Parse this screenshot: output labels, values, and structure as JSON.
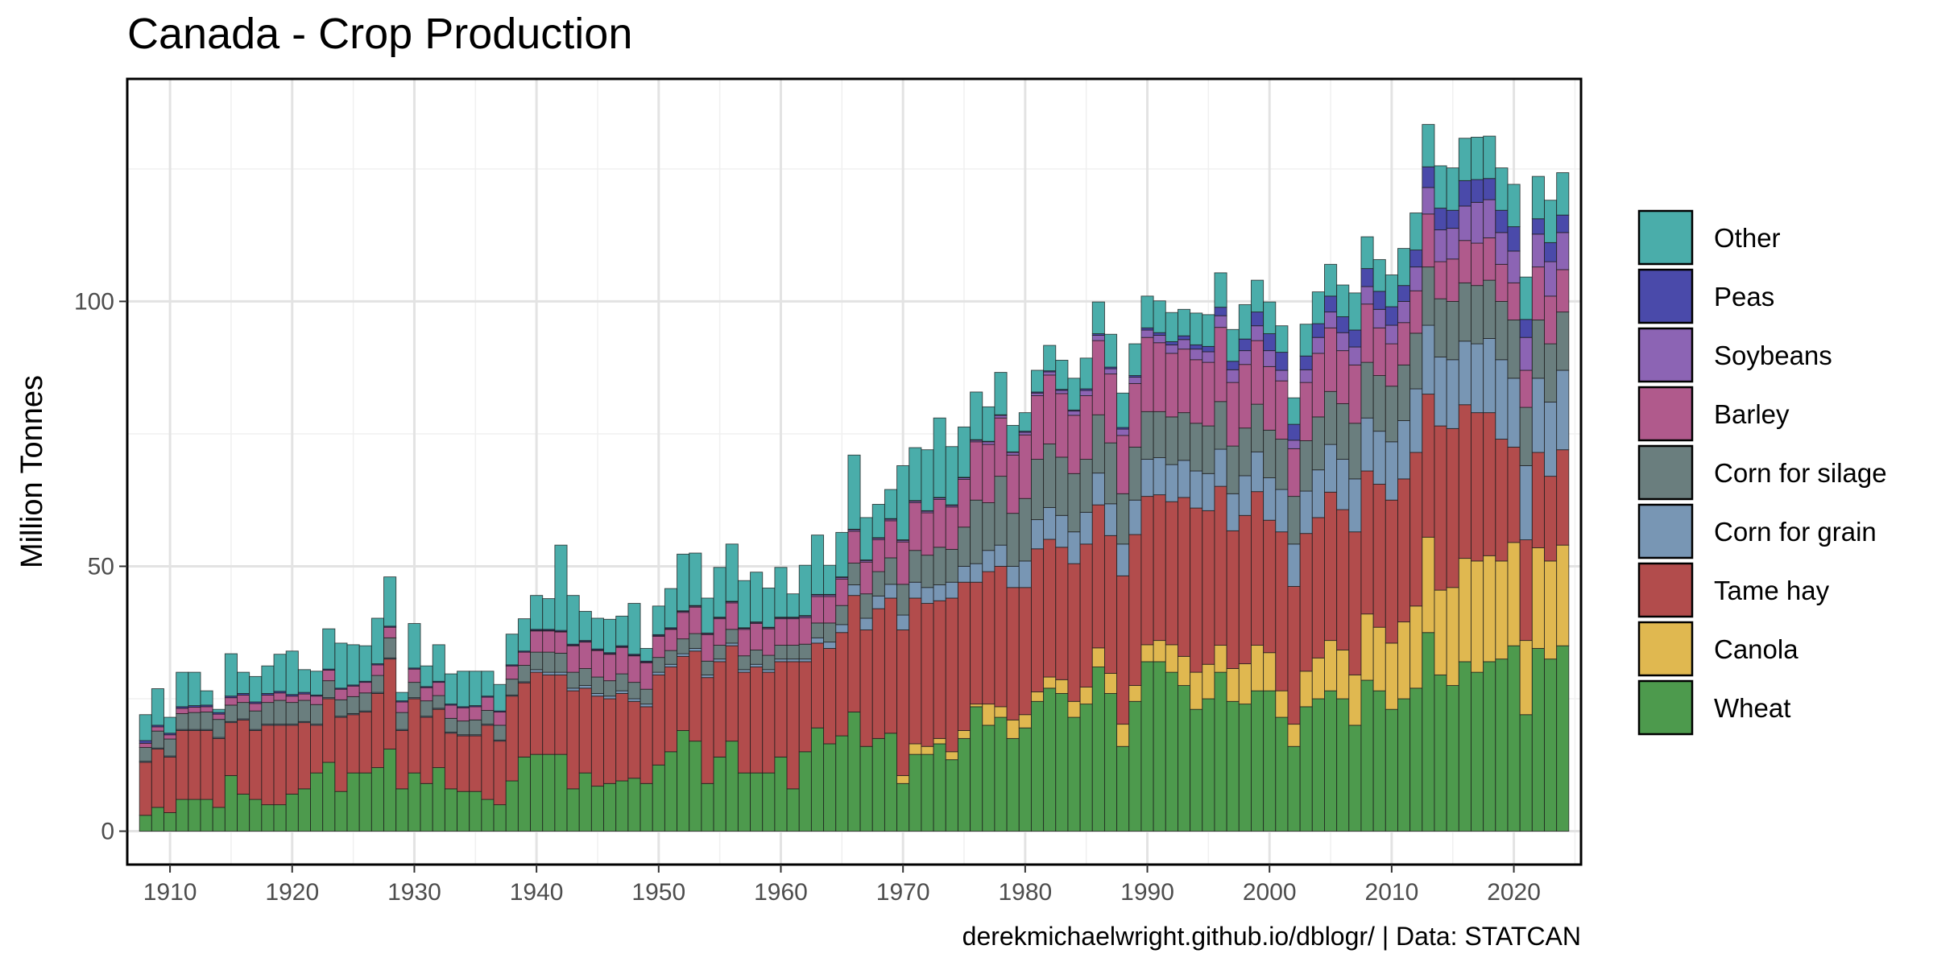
{
  "chart_data": {
    "type": "bar",
    "stacked": true,
    "title": "Canada - Crop Production",
    "ylabel": "Million Tonnes",
    "xlabel": "",
    "caption": "derekmichaelwright.github.io/dblogr/ | Data: STATCAN",
    "xlim": [
      1906.5,
      2025.5
    ],
    "ylim": [
      -6.3,
      142
    ],
    "x_ticks": [
      1910,
      1920,
      1930,
      1940,
      1950,
      1960,
      1970,
      1980,
      1990,
      2000,
      2010,
      2020
    ],
    "y_ticks": [
      0,
      50,
      100
    ],
    "grid": true,
    "legend_position": "right",
    "legend_order": [
      "Other",
      "Peas",
      "Soybeans",
      "Barley",
      "Corn for silage",
      "Corn for grain",
      "Tame hay",
      "Canola",
      "Wheat"
    ],
    "years": [
      1908,
      1909,
      1910,
      1911,
      1912,
      1913,
      1914,
      1915,
      1916,
      1917,
      1918,
      1919,
      1920,
      1921,
      1922,
      1923,
      1924,
      1925,
      1926,
      1927,
      1928,
      1929,
      1930,
      1931,
      1932,
      1933,
      1934,
      1935,
      1936,
      1937,
      1938,
      1939,
      1940,
      1941,
      1942,
      1943,
      1944,
      1945,
      1946,
      1947,
      1948,
      1949,
      1950,
      1951,
      1952,
      1953,
      1954,
      1955,
      1956,
      1957,
      1958,
      1959,
      1960,
      1961,
      1962,
      1963,
      1964,
      1965,
      1966,
      1967,
      1968,
      1969,
      1970,
      1971,
      1972,
      1973,
      1974,
      1975,
      1976,
      1977,
      1978,
      1979,
      1980,
      1981,
      1982,
      1983,
      1984,
      1985,
      1986,
      1987,
      1988,
      1989,
      1990,
      1991,
      1992,
      1993,
      1994,
      1995,
      1996,
      1997,
      1998,
      1999,
      2000,
      2001,
      2002,
      2003,
      2004,
      2005,
      2006,
      2007,
      2008,
      2009,
      2010,
      2011,
      2012,
      2013,
      2014,
      2015,
      2016,
      2017,
      2018,
      2019,
      2020,
      2021,
      2022,
      2023,
      2024
    ],
    "series": [
      {
        "name": "Wheat",
        "color": "#4d9a4d",
        "values": [
          3,
          4.5,
          3.5,
          6,
          6,
          6,
          4.5,
          10.5,
          7,
          6,
          5,
          5,
          7,
          8,
          11,
          13,
          7.5,
          11,
          11,
          12,
          15.5,
          8,
          11,
          9,
          12,
          8,
          7.5,
          7.5,
          6,
          5,
          9.5,
          14,
          14.5,
          14.5,
          14.5,
          8,
          11,
          8.5,
          9,
          9.5,
          10,
          9,
          12.5,
          15,
          19,
          17,
          9,
          14,
          17,
          11,
          11,
          11,
          14,
          8,
          15,
          19.5,
          16.5,
          18,
          22.5,
          16,
          17.5,
          18.5,
          9,
          14.5,
          14.5,
          16.5,
          13.5,
          17.5,
          23.5,
          20,
          21.5,
          17.5,
          19.5,
          24.5,
          27,
          26,
          21.5,
          24,
          31,
          26,
          16,
          24.5,
          32,
          32,
          30,
          27.5,
          23,
          25,
          30,
          24.5,
          24,
          26.5,
          26.5,
          21.5,
          16,
          23.5,
          25,
          26.5,
          25,
          20,
          28.5,
          26.5,
          23,
          25,
          27,
          37.5,
          29.5,
          27.5,
          32,
          30,
          32,
          32.5,
          35,
          22,
          34.5,
          32.5,
          35
        ]
      },
      {
        "name": "Canola",
        "color": "#e0b850",
        "values": [
          0,
          0,
          0,
          0,
          0,
          0,
          0,
          0,
          0,
          0,
          0,
          0,
          0,
          0,
          0,
          0,
          0,
          0,
          0,
          0,
          0,
          0,
          0,
          0,
          0,
          0,
          0,
          0,
          0,
          0,
          0,
          0,
          0,
          0,
          0,
          0,
          0,
          0,
          0,
          0,
          0,
          0,
          0,
          0,
          0,
          0,
          0,
          0,
          0,
          0,
          0,
          0,
          0,
          0,
          0,
          0,
          0,
          0,
          0,
          0,
          0,
          0,
          1.5,
          2,
          1.5,
          1,
          1.5,
          1.5,
          0.5,
          4,
          2,
          3.5,
          2.5,
          1.8,
          2.1,
          2.6,
          3,
          3.2,
          3.6,
          3.8,
          4.2,
          3,
          3.2,
          4,
          5.2,
          5.5,
          7,
          6.5,
          5.1,
          6.2,
          7.6,
          8.6,
          7.2,
          5,
          4.2,
          6.7,
          7.7,
          9.5,
          9.2,
          9.5,
          12.5,
          12,
          12.5,
          14.5,
          15.5,
          18,
          16,
          18.5,
          19.5,
          21,
          20,
          18.5,
          19.5,
          14,
          19,
          18.5,
          19
        ]
      },
      {
        "name": "Tame hay",
        "color": "#b24c4c",
        "values": [
          10,
          11,
          10.5,
          13,
          13,
          13,
          13,
          10,
          14,
          13,
          15,
          15,
          13,
          12.5,
          9,
          12,
          14,
          11,
          11.5,
          14,
          17,
          11,
          14,
          12.5,
          11,
          10.5,
          10.5,
          10.5,
          14,
          12,
          16,
          14,
          15.5,
          15,
          15,
          18.5,
          16,
          17,
          16,
          16.5,
          14.5,
          14.5,
          17,
          16,
          14,
          17,
          20,
          18,
          18,
          19,
          20,
          19,
          18,
          24,
          17,
          16,
          18,
          19.5,
          22,
          22,
          24.5,
          25.5,
          27.5,
          27.5,
          27,
          26,
          29,
          28,
          23,
          25,
          26.5,
          25,
          24,
          27,
          26,
          25,
          26,
          27,
          27,
          26,
          28,
          28.5,
          28,
          27.5,
          27,
          30,
          31,
          29,
          30,
          26,
          28,
          29,
          25,
          30,
          26,
          26,
          26.5,
          28,
          26.5,
          27,
          27,
          27,
          27,
          27,
          29,
          27,
          31,
          30,
          29,
          28,
          27,
          23,
          18,
          19,
          18,
          16,
          18
        ]
      },
      {
        "name": "Corn for grain",
        "color": "#7896b4",
        "values": [
          0.2,
          0.2,
          0.2,
          0.2,
          0.2,
          0.2,
          0.2,
          0.2,
          0.2,
          0.2,
          0.2,
          0.2,
          0.2,
          0.2,
          0.2,
          0.2,
          0.2,
          0.2,
          0.2,
          0.2,
          0.2,
          0.2,
          0.2,
          0.2,
          0.2,
          0.2,
          0.2,
          0.2,
          0.2,
          0.2,
          0.2,
          0.2,
          0.5,
          0.5,
          0.5,
          0.5,
          0.5,
          0.5,
          0.5,
          0.5,
          0.5,
          0.5,
          0.5,
          0.5,
          0.5,
          0.5,
          0.5,
          0.5,
          0.5,
          0.5,
          0.5,
          0.5,
          0.5,
          0.5,
          0.5,
          1,
          1.2,
          1.5,
          2,
          2.2,
          2.4,
          2.6,
          2.8,
          3,
          3,
          3,
          3,
          3,
          3.5,
          4,
          4,
          4,
          5,
          5.5,
          6,
          6,
          6,
          6,
          6,
          6,
          6,
          6.5,
          7,
          7,
          7,
          7,
          7,
          7,
          7,
          7,
          7.5,
          7.5,
          8,
          8,
          8,
          8,
          9,
          9,
          9.5,
          10,
          10,
          10,
          11,
          11,
          12,
          13,
          13,
          13,
          12,
          13,
          14,
          15,
          13,
          14,
          14,
          14,
          15
        ]
      },
      {
        "name": "Corn for silage",
        "color": "#6a7e7e",
        "values": [
          2.6,
          3.2,
          3.2,
          3,
          3.2,
          3.3,
          3.4,
          3.1,
          3.1,
          3.5,
          4.1,
          4.5,
          4.1,
          4,
          3.7,
          3.2,
          3.1,
          3.2,
          3.4,
          3.2,
          3.8,
          3.2,
          2.9,
          2.9,
          2.4,
          2.6,
          2.6,
          2.8,
          2.6,
          2.8,
          3,
          3.1,
          3.3,
          3.8,
          3.6,
          3,
          3.2,
          3.1,
          2.9,
          3.2,
          3.1,
          2.8,
          2.8,
          2.6,
          2.8,
          2.8,
          2.6,
          2.6,
          2.6,
          2.6,
          2.7,
          2.7,
          2.6,
          2.6,
          2.8,
          2.8,
          3.6,
          3.6,
          4.1,
          4.6,
          4.6,
          5,
          5.8,
          6,
          6.1,
          7.1,
          6.2,
          7.4,
          12,
          9,
          13,
          10,
          11.8,
          11.4,
          12,
          11,
          11,
          10,
          11,
          11.5,
          9.5,
          10,
          9,
          8.7,
          9,
          9,
          9,
          9,
          9,
          9,
          9,
          9,
          9,
          9.5,
          9,
          9.5,
          10,
          10,
          10.5,
          10.5,
          10.5,
          10.5,
          10.5,
          10.5,
          10.5,
          11,
          11,
          11,
          11,
          11,
          11,
          11,
          11,
          11,
          11,
          11,
          11
        ]
      },
      {
        "name": "Barley",
        "color": "#b05a8c",
        "values": [
          0.8,
          0.8,
          0.8,
          1,
          1,
          1,
          1,
          1.4,
          1.4,
          1.4,
          1.4,
          1.4,
          1.2,
          1.2,
          1.6,
          2,
          2,
          2,
          2,
          2,
          2,
          2,
          2.5,
          2.5,
          2.5,
          2.5,
          2.5,
          2.5,
          2.5,
          2.5,
          2.5,
          2.5,
          4,
          4,
          4,
          5,
          5,
          5,
          5,
          5,
          5,
          5,
          4,
          4,
          5,
          5,
          5,
          5,
          5,
          5,
          5,
          5,
          5,
          5,
          5,
          5,
          5,
          5,
          6,
          6,
          6,
          7,
          8,
          9,
          8,
          9,
          8,
          9,
          11,
          11,
          11,
          11,
          12,
          12,
          13,
          12,
          11,
          12,
          14,
          13,
          11,
          12,
          14,
          13,
          12,
          12,
          12,
          12,
          14,
          12,
          12,
          12,
          12,
          11,
          9,
          11,
          12,
          12,
          10,
          11,
          11,
          9,
          8,
          8,
          8,
          10,
          7,
          8,
          8,
          8,
          8,
          7,
          7,
          7,
          10,
          9,
          8
        ]
      },
      {
        "name": "Soybeans",
        "color": "#8c64b4",
        "values": [
          0,
          0,
          0,
          0,
          0,
          0,
          0,
          0,
          0,
          0,
          0,
          0,
          0,
          0,
          0,
          0,
          0,
          0,
          0,
          0,
          0,
          0,
          0,
          0,
          0,
          0,
          0,
          0,
          0,
          0,
          0,
          0,
          0.1,
          0.1,
          0.1,
          0.1,
          0.1,
          0.1,
          0.1,
          0.1,
          0.1,
          0.1,
          0.1,
          0.1,
          0.2,
          0.2,
          0.2,
          0.2,
          0.2,
          0.2,
          0.2,
          0.2,
          0.2,
          0.2,
          0.3,
          0.3,
          0.3,
          0.3,
          0.3,
          0.3,
          0.3,
          0.3,
          0.3,
          0.3,
          0.3,
          0.3,
          0.3,
          0.3,
          0.3,
          0.5,
          0.5,
          0.5,
          0.5,
          0.5,
          0.6,
          0.6,
          0.8,
          1,
          1,
          1,
          1.2,
          1.2,
          1.4,
          1.4,
          1.6,
          1.8,
          2,
          2,
          2.2,
          2.4,
          2.6,
          2.8,
          3,
          2,
          1.6,
          2.4,
          3,
          3,
          3.4,
          3.4,
          3.3,
          3.5,
          3.5,
          4,
          4.5,
          5,
          6,
          5.8,
          6.5,
          7.7,
          7.2,
          6,
          6,
          6.2,
          6.2,
          6.5,
          7
        ]
      },
      {
        "name": "Peas",
        "color": "#4a4aaa",
        "values": [
          0.5,
          0.3,
          0.3,
          0.3,
          0.3,
          0.3,
          0.3,
          0.3,
          0.3,
          0.3,
          0.3,
          0.3,
          0.3,
          0.3,
          0.2,
          0.2,
          0.2,
          0.2,
          0.2,
          0.2,
          0.2,
          0.2,
          0.2,
          0.2,
          0.2,
          0.2,
          0.2,
          0.2,
          0.2,
          0.2,
          0.2,
          0.2,
          0.2,
          0.2,
          0.2,
          0.2,
          0.2,
          0.2,
          0.2,
          0.2,
          0.2,
          0.2,
          0.2,
          0.2,
          0.1,
          0.1,
          0.1,
          0.1,
          0.1,
          0.1,
          0.1,
          0.1,
          0.1,
          0.1,
          0.1,
          0.1,
          0.1,
          0.1,
          0.1,
          0.1,
          0.1,
          0.1,
          0.1,
          0.1,
          0.1,
          0.1,
          0.1,
          0.1,
          0.1,
          0.1,
          0.1,
          0.1,
          0.2,
          0.2,
          0.2,
          0.2,
          0.2,
          0.3,
          0.3,
          0.3,
          0.3,
          0.3,
          0.4,
          0.5,
          0.6,
          0.7,
          0.8,
          1,
          1.6,
          1.6,
          2.2,
          2.6,
          3.2,
          3.4,
          3,
          2.6,
          2.6,
          3,
          3,
          3.2,
          3.4,
          3.4,
          3.5,
          3,
          3.2,
          3.9,
          4.1,
          3.4,
          4.8,
          4.3,
          4,
          4.2,
          4.6,
          3.4,
          2.9,
          3.6,
          3.3
        ]
      },
      {
        "name": "Other",
        "color": "#4aadaa",
        "values": [
          4.9,
          6.9,
          3,
          6.5,
          6.3,
          2.7,
          0.6,
          8,
          4,
          4.8,
          5.2,
          7,
          8.2,
          4.3,
          4.5,
          7.6,
          8.5,
          7.6,
          6.7,
          8.6,
          9.3,
          1.6,
          8.4,
          3.9,
          6.9,
          5.7,
          6.7,
          6.5,
          4.7,
          5,
          5.8,
          6.1,
          6.4,
          5.8,
          16.1,
          9.2,
          5.5,
          5.8,
          6.3,
          5.6,
          9.6,
          2.4,
          5.4,
          7.4,
          10.7,
          9.9,
          6.6,
          9.4,
          10.8,
          8.9,
          9.4,
          7.4,
          9.4,
          4.4,
          9.5,
          11.2,
          5.5,
          8.4,
          14,
          8,
          6.3,
          5.5,
          14,
          10,
          11.5,
          15,
          11,
          9.5,
          9,
          6.5,
          8,
          5,
          3.5,
          4.1,
          4.8,
          5.5,
          6,
          5.8,
          6,
          6.2,
          6.5,
          6,
          6,
          6,
          5.5,
          5,
          6,
          6,
          6.5,
          6,
          6.5,
          6,
          6,
          5,
          5,
          6,
          6,
          6,
          6,
          7,
          6,
          6,
          6,
          7,
          7,
          8,
          8,
          8,
          8,
          8,
          8,
          8,
          8,
          8,
          8,
          8,
          8
        ]
      }
    ]
  }
}
